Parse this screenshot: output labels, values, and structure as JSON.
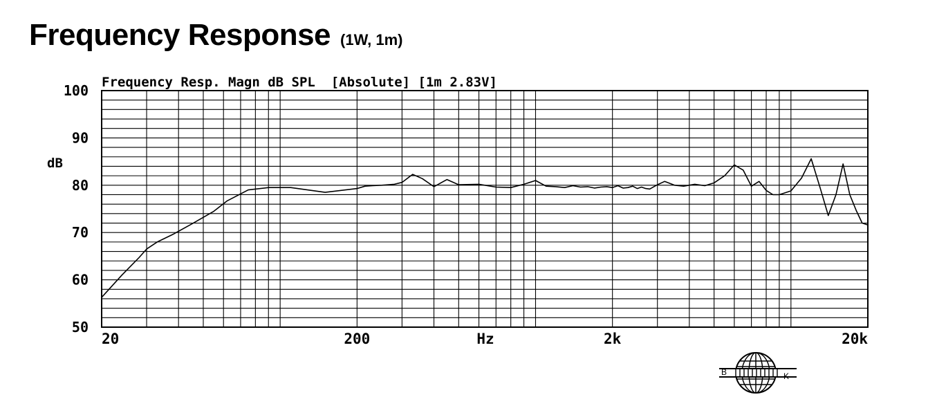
{
  "heading": {
    "title": "Frequency Response",
    "subtitle": "(1W, 1m)"
  },
  "chart_data": {
    "type": "line",
    "title": "Frequency Resp. Magn dB SPL  [Absolute] [1m 2.83V]",
    "xlabel": "Hz",
    "ylabel": "dB",
    "xscale": "log",
    "xlim": [
      20,
      20000
    ],
    "ylim": [
      50,
      100
    ],
    "grid": true,
    "xticks": [
      {
        "value": 20,
        "label": "20"
      },
      {
        "value": 200,
        "label": "200"
      },
      {
        "value": 2000,
        "label": "2k"
      },
      {
        "value": 20000,
        "label": "20k"
      }
    ],
    "yticks": [
      {
        "value": 100,
        "label": "100"
      },
      {
        "value": 90,
        "label": "90"
      },
      {
        "value": 80,
        "label": "80"
      },
      {
        "value": 70,
        "label": "70"
      },
      {
        "value": 60,
        "label": "60"
      },
      {
        "value": 50,
        "label": "50"
      }
    ],
    "series": [
      {
        "x": [
          20,
          24,
          28,
          30,
          33,
          38,
          45,
          55,
          62,
          75,
          90,
          110,
          150,
          200,
          215,
          230,
          250,
          280,
          300,
          330,
          360,
          400,
          450,
          500,
          600,
          700,
          800,
          900,
          1000,
          1100,
          1200,
          1300,
          1400,
          1500,
          1600,
          1700,
          1800,
          1900,
          2000,
          2100,
          2200,
          2300,
          2400,
          2500,
          2600,
          2700,
          2800,
          3000,
          3200,
          3500,
          3800,
          4200,
          4600,
          5000,
          5500,
          6000,
          6500,
          7000,
          7500,
          8000,
          8500,
          9000,
          10000,
          11000,
          12000,
          13000,
          14000,
          15000,
          16000,
          17000,
          18000,
          19000,
          20000
        ],
        "y": [
          56.3,
          61,
          64.7,
          66.5,
          68,
          69.6,
          71.8,
          74.5,
          76.7,
          79,
          79.5,
          79.5,
          78.5,
          79.3,
          79.8,
          79.9,
          80,
          80.2,
          80.6,
          82.3,
          81.4,
          79.7,
          81.2,
          80.1,
          80.2,
          79.6,
          79.5,
          80.2,
          81,
          79.8,
          79.7,
          79.5,
          79.9,
          79.6,
          79.7,
          79.4,
          79.6,
          79.7,
          79.5,
          79.9,
          79.4,
          79.5,
          79.8,
          79.3,
          79.6,
          79.3,
          79.2,
          80.1,
          80.8,
          80,
          79.8,
          80.2,
          79.9,
          80.5,
          82,
          84.3,
          83.2,
          79.8,
          80.8,
          78.9,
          78,
          78,
          78.8,
          81.5,
          85.6,
          79.5,
          73.6,
          78,
          84.5,
          78,
          74.7,
          72,
          71.6
        ]
      }
    ]
  },
  "logo": {
    "left_letter": "B",
    "right_letter": "K"
  }
}
